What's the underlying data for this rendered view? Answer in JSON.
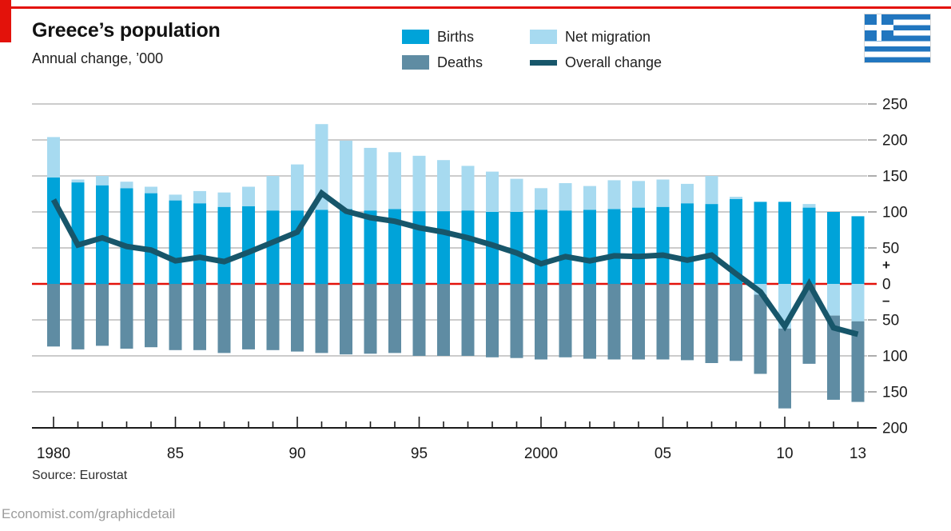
{
  "header": {
    "title": "Greece’s population",
    "subtitle": "Annual change, ’000"
  },
  "legend": {
    "items": [
      {
        "label": "Births",
        "color": "#00a3d9",
        "swatch": "box"
      },
      {
        "label": "Deaths",
        "color": "#5f8ca3",
        "swatch": "box"
      },
      {
        "label": "Net migration",
        "color": "#a7daf0",
        "swatch": "box"
      },
      {
        "label": "Overall change",
        "color": "#17566a",
        "swatch": "line"
      }
    ]
  },
  "flag": {
    "name": "flag-of-greece",
    "blue": "#2176bf",
    "white": "#ffffff"
  },
  "chart_data": {
    "type": "bar",
    "subtype": "diverging stacked bars with overlaid line",
    "title": "Greece’s population",
    "ylabel": "",
    "xlabel": "",
    "ylim": [
      -200,
      250
    ],
    "grid": "horizontal",
    "zero_line_color": "#e3120b",
    "grid_color": "#bcbcbc",
    "plus_label": "+",
    "minus_label": "–",
    "x": [
      1980,
      1981,
      1982,
      1983,
      1984,
      1985,
      1986,
      1987,
      1988,
      1989,
      1990,
      1991,
      1992,
      1993,
      1994,
      1995,
      1996,
      1997,
      1998,
      1999,
      2000,
      2001,
      2002,
      2003,
      2004,
      2005,
      2006,
      2007,
      2008,
      2009,
      2010,
      2011,
      2012,
      2013
    ],
    "series": [
      {
        "name": "Births",
        "type": "bar",
        "color": "#00a3d9",
        "values": [
          148,
          141,
          137,
          133,
          126,
          116,
          112,
          107,
          108,
          102,
          102,
          103,
          104,
          102,
          104,
          101,
          101,
          102,
          100,
          100,
          103,
          102,
          103,
          104,
          106,
          107,
          112,
          111,
          118,
          114,
          114,
          106,
          100,
          94
        ]
      },
      {
        "name": "Net migration",
        "type": "bar",
        "color": "#a7daf0",
        "values": [
          56,
          4,
          13,
          9,
          9,
          8,
          17,
          20,
          27,
          48,
          64,
          119,
          95,
          87,
          79,
          77,
          71,
          62,
          56,
          46,
          30,
          38,
          33,
          40,
          37,
          38,
          27,
          39,
          3,
          -15,
          -62,
          5,
          -44,
          -52
        ]
      },
      {
        "name": "Deaths",
        "type": "bar",
        "color": "#5f8ca3",
        "values": [
          -87,
          -91,
          -86,
          -90,
          -88,
          -92,
          -92,
          -96,
          -91,
          -92,
          -94,
          -96,
          -98,
          -97,
          -96,
          -100,
          -100,
          -100,
          -102,
          -103,
          -105,
          -102,
          -104,
          -105,
          -105,
          -105,
          -106,
          -110,
          -107,
          -110,
          -111,
          -111,
          -117,
          -112
        ]
      },
      {
        "name": "Overall change",
        "type": "line",
        "color": "#17566a",
        "values": [
          117,
          54,
          64,
          52,
          47,
          32,
          37,
          31,
          44,
          58,
          72,
          126,
          101,
          92,
          87,
          78,
          72,
          64,
          54,
          43,
          28,
          38,
          32,
          39,
          38,
          40,
          33,
          40,
          14,
          -11,
          -59,
          0,
          -61,
          -70
        ]
      }
    ],
    "yticks": [
      {
        "v": 250,
        "label": "250"
      },
      {
        "v": 200,
        "label": "200"
      },
      {
        "v": 150,
        "label": "150"
      },
      {
        "v": 100,
        "label": "100"
      },
      {
        "v": 50,
        "label": "50"
      },
      {
        "v": 0,
        "label": "0"
      },
      {
        "v": -50,
        "label": "50"
      },
      {
        "v": -100,
        "label": "100"
      },
      {
        "v": -150,
        "label": "150"
      },
      {
        "v": -200,
        "label": "200"
      }
    ],
    "xticks": [
      {
        "year": 1980,
        "label": "1980"
      },
      {
        "year": 1985,
        "label": "85"
      },
      {
        "year": 1990,
        "label": "90"
      },
      {
        "year": 1995,
        "label": "95"
      },
      {
        "year": 2000,
        "label": "2000"
      },
      {
        "year": 2005,
        "label": "05"
      },
      {
        "year": 2010,
        "label": "10"
      },
      {
        "year": 2013,
        "label": "13"
      }
    ],
    "legend_position": "top"
  },
  "source": {
    "text": "Source: Eurostat"
  },
  "footer": {
    "text": "Economist.com/graphicdetail"
  }
}
